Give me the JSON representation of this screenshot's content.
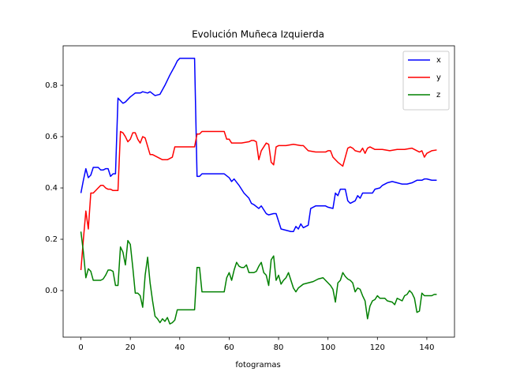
{
  "chart_data": {
    "type": "line",
    "title": "Evolución Muñeca Izquierda",
    "xlabel": "fotogramas",
    "xlim": [
      -7.2,
      151.2
    ],
    "ylim": [
      -0.1815,
      0.954
    ],
    "xticks": [
      0,
      20,
      40,
      60,
      80,
      100,
      120,
      140
    ],
    "yticks": [
      {
        "value": 0,
        "label": "0.0"
      },
      0.2,
      0.4,
      0.6,
      0.8
    ],
    "grid": false,
    "legend": "upper-right",
    "series": [
      {
        "name": "x",
        "color": "#0000ff",
        "x": [
          0,
          1,
          2,
          3,
          4,
          5,
          6,
          7,
          8,
          9,
          10,
          11,
          12,
          13,
          14,
          15,
          16,
          17,
          18,
          20,
          22,
          24,
          25,
          27,
          28,
          30,
          32,
          34,
          36,
          38,
          39,
          40,
          46,
          47,
          48,
          49,
          58,
          60,
          61,
          62,
          64,
          66,
          68,
          69,
          70,
          72,
          73,
          75,
          76,
          78,
          79,
          80,
          81,
          83,
          85,
          86,
          87,
          88,
          89,
          90,
          92,
          93,
          95,
          99,
          100,
          102,
          103,
          104,
          105,
          107,
          108,
          109,
          111,
          112,
          113,
          114,
          118,
          119,
          121,
          122,
          124,
          126,
          128,
          130,
          132,
          134,
          136,
          138,
          139,
          140,
          142,
          144
        ],
        "values": [
          0.38,
          0.43,
          0.475,
          0.44,
          0.45,
          0.48,
          0.48,
          0.48,
          0.47,
          0.47,
          0.475,
          0.475,
          0.445,
          0.455,
          0.455,
          0.75,
          0.74,
          0.73,
          0.735,
          0.755,
          0.77,
          0.77,
          0.775,
          0.77,
          0.775,
          0.76,
          0.765,
          0.8,
          0.84,
          0.875,
          0.895,
          0.905,
          0.905,
          0.445,
          0.445,
          0.455,
          0.455,
          0.44,
          0.425,
          0.435,
          0.41,
          0.38,
          0.36,
          0.34,
          0.335,
          0.32,
          0.33,
          0.3,
          0.295,
          0.3,
          0.3,
          0.27,
          0.24,
          0.235,
          0.23,
          0.23,
          0.25,
          0.24,
          0.26,
          0.245,
          0.255,
          0.32,
          0.33,
          0.33,
          0.325,
          0.32,
          0.38,
          0.37,
          0.395,
          0.395,
          0.35,
          0.34,
          0.35,
          0.37,
          0.36,
          0.38,
          0.38,
          0.395,
          0.4,
          0.41,
          0.42,
          0.425,
          0.42,
          0.415,
          0.415,
          0.42,
          0.43,
          0.43,
          0.435,
          0.435,
          0.43,
          0.43
        ]
      },
      {
        "name": "y",
        "color": "#ff0000",
        "x": [
          0,
          1,
          2,
          3,
          4,
          5,
          6,
          7,
          8,
          9,
          10,
          11,
          12,
          13,
          14,
          15,
          16,
          17,
          18,
          19,
          20,
          21,
          22,
          23,
          24,
          25,
          26,
          28,
          29,
          31,
          33,
          35,
          36,
          37,
          38,
          46,
          47,
          48,
          49,
          58,
          59,
          60,
          61,
          62,
          65,
          68,
          69,
          70,
          71,
          72,
          73,
          74,
          75,
          76,
          77,
          78,
          79,
          80,
          83,
          86,
          89,
          90,
          92,
          95,
          99,
          100,
          101,
          102,
          103,
          104,
          106,
          107,
          108,
          109,
          110,
          111,
          113,
          114,
          115,
          116,
          117,
          119,
          122,
          125,
          128,
          131,
          134,
          136,
          137,
          138,
          139,
          140,
          142,
          144
        ],
        "values": [
          0.08,
          0.2,
          0.31,
          0.24,
          0.38,
          0.38,
          0.39,
          0.4,
          0.41,
          0.41,
          0.4,
          0.395,
          0.395,
          0.39,
          0.39,
          0.39,
          0.62,
          0.615,
          0.6,
          0.58,
          0.59,
          0.615,
          0.615,
          0.59,
          0.575,
          0.6,
          0.595,
          0.53,
          0.53,
          0.52,
          0.51,
          0.51,
          0.515,
          0.52,
          0.56,
          0.56,
          0.61,
          0.61,
          0.62,
          0.62,
          0.59,
          0.59,
          0.575,
          0.575,
          0.575,
          0.58,
          0.585,
          0.585,
          0.58,
          0.51,
          0.545,
          0.56,
          0.575,
          0.57,
          0.5,
          0.49,
          0.56,
          0.565,
          0.565,
          0.57,
          0.565,
          0.565,
          0.545,
          0.54,
          0.54,
          0.545,
          0.545,
          0.52,
          0.51,
          0.5,
          0.485,
          0.52,
          0.555,
          0.56,
          0.555,
          0.545,
          0.54,
          0.555,
          0.535,
          0.555,
          0.56,
          0.55,
          0.55,
          0.545,
          0.55,
          0.55,
          0.555,
          0.545,
          0.54,
          0.545,
          0.52,
          0.535,
          0.545,
          0.548
        ]
      },
      {
        "name": "z",
        "color": "#008000",
        "x": [
          0,
          1,
          2,
          3,
          4,
          5,
          6,
          8,
          9,
          10,
          11,
          12,
          13,
          14,
          15,
          16,
          17,
          18,
          19,
          20,
          21,
          22,
          23,
          24,
          25,
          26,
          27,
          28,
          29,
          30,
          31,
          32,
          33,
          34,
          35,
          36,
          37,
          38,
          39,
          46,
          47,
          48,
          49,
          58,
          59,
          60,
          61,
          62,
          63,
          64,
          65,
          66,
          67,
          68,
          70,
          71,
          72,
          73,
          74,
          75,
          76,
          77,
          78,
          79,
          80,
          81,
          82,
          83,
          84,
          85,
          86,
          87,
          88,
          90,
          92,
          94,
          96,
          98,
          100,
          101,
          102,
          103,
          104,
          105,
          106,
          107,
          108,
          109,
          110,
          111,
          112,
          113,
          114,
          115,
          116,
          117,
          118,
          119,
          120,
          121,
          123,
          124,
          126,
          127,
          128,
          130,
          131,
          132,
          133,
          134,
          135,
          136,
          137,
          138,
          139,
          140,
          142,
          143,
          144
        ],
        "values": [
          0.23,
          0.15,
          0.05,
          0.085,
          0.075,
          0.04,
          0.04,
          0.04,
          0.045,
          0.06,
          0.08,
          0.08,
          0.075,
          0.02,
          0.02,
          0.17,
          0.15,
          0.1,
          0.195,
          0.18,
          0.09,
          -0.01,
          -0.01,
          -0.02,
          -0.065,
          0.06,
          0.13,
          0.03,
          -0.04,
          -0.1,
          -0.11,
          -0.125,
          -0.11,
          -0.12,
          -0.105,
          -0.13,
          -0.125,
          -0.115,
          -0.075,
          -0.075,
          0.09,
          0.09,
          -0.005,
          -0.005,
          0.05,
          0.07,
          0.04,
          0.08,
          0.11,
          0.095,
          0.09,
          0.09,
          0.1,
          0.07,
          0.07,
          0.075,
          0.095,
          0.11,
          0.07,
          0.06,
          0.02,
          0.12,
          0.135,
          0.04,
          0.06,
          0.025,
          0.04,
          0.05,
          0.07,
          0.04,
          0.01,
          -0.005,
          0.01,
          0.025,
          0.03,
          0.035,
          0.045,
          0.05,
          0.03,
          0.02,
          0.005,
          -0.045,
          0.03,
          0.04,
          0.07,
          0.055,
          0.045,
          0.04,
          0.03,
          -0.005,
          0.01,
          0.005,
          -0.02,
          -0.04,
          -0.11,
          -0.06,
          -0.04,
          -0.035,
          -0.02,
          -0.03,
          -0.03,
          -0.04,
          -0.045,
          -0.055,
          -0.03,
          -0.04,
          -0.02,
          -0.015,
          0,
          -0.01,
          -0.03,
          -0.085,
          -0.08,
          -0.01,
          -0.02,
          -0.02,
          -0.02,
          -0.015,
          -0.015
        ]
      }
    ]
  }
}
